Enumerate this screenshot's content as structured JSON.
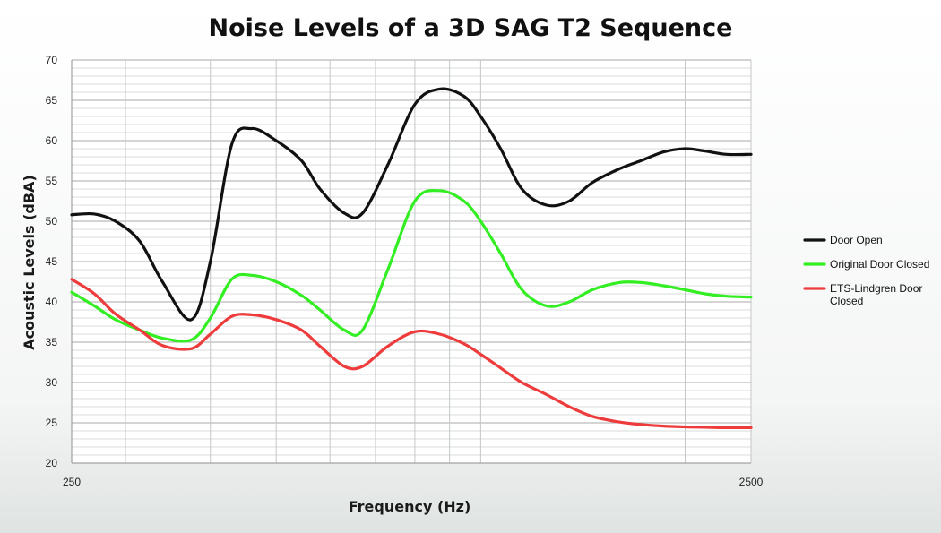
{
  "chart_data": {
    "type": "line",
    "title": "Noise Levels of a 3D SAG T2 Sequence",
    "xlabel": "Frequency (Hz)",
    "ylabel": "Acoustic Levels (dBA)",
    "x_scale": "log",
    "xlim": [
      250,
      2500
    ],
    "ylim": [
      20,
      70
    ],
    "y_ticks": [
      20,
      25,
      30,
      35,
      40,
      45,
      50,
      55,
      60,
      65,
      70
    ],
    "x_tick_labels": [
      {
        "value": 250,
        "label": "250"
      },
      {
        "value": 2500,
        "label": "2500"
      }
    ],
    "grid": true,
    "legend_position": "right",
    "x": [
      250,
      270,
      290,
      315,
      340,
      375,
      400,
      430,
      460,
      500,
      545,
      580,
      630,
      670,
      730,
      800,
      870,
      945,
      1000,
      1070,
      1150,
      1250,
      1350,
      1460,
      1600,
      1720,
      1860,
      2000,
      2140,
      2300,
      2500
    ],
    "series": [
      {
        "name": "Door Open",
        "color": "#111111",
        "values": [
          50.8,
          50.9,
          50.0,
          47.5,
          42.5,
          37.8,
          45.0,
          59.5,
          61.5,
          60.0,
          57.5,
          54.0,
          51.0,
          51.0,
          57.0,
          64.5,
          66.4,
          65.5,
          63.0,
          59.0,
          54.0,
          52.0,
          52.5,
          54.8,
          56.5,
          57.5,
          58.6,
          59.0,
          58.7,
          58.3,
          58.3
        ]
      },
      {
        "name": "Original Door Closed",
        "color": "#33ee22",
        "values": [
          41.2,
          39.5,
          37.8,
          36.5,
          35.5,
          35.3,
          38.0,
          42.8,
          43.3,
          42.5,
          40.8,
          39.0,
          36.5,
          36.5,
          44.0,
          52.5,
          53.8,
          52.5,
          50.0,
          46.0,
          41.5,
          39.5,
          40.0,
          41.5,
          42.4,
          42.4,
          42.0,
          41.5,
          41.0,
          40.7,
          40.6
        ]
      },
      {
        "name": "ETS-Lindgren Door Closed",
        "color": "#ee3b3b",
        "values": [
          42.8,
          41.0,
          38.5,
          36.5,
          34.6,
          34.2,
          36.0,
          38.2,
          38.4,
          37.8,
          36.5,
          34.5,
          32.0,
          32.0,
          34.5,
          36.3,
          36.0,
          34.8,
          33.5,
          31.8,
          30.0,
          28.5,
          27.0,
          25.8,
          25.1,
          24.8,
          24.6,
          24.5,
          24.45,
          24.4,
          24.4
        ]
      }
    ]
  }
}
